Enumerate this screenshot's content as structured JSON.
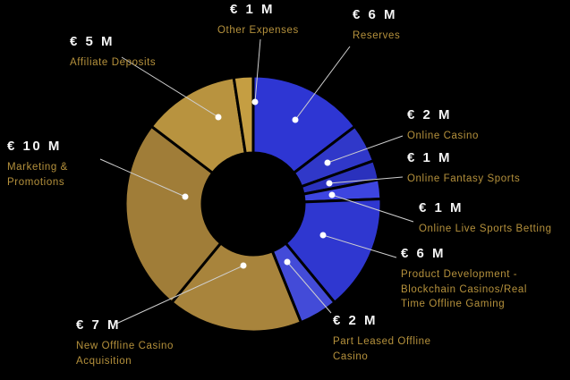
{
  "chart_data": {
    "type": "pie",
    "subtype": "donut",
    "title": "",
    "unit": "€ M",
    "total": 41,
    "legend": "none",
    "background": "#000000",
    "series": [
      {
        "name": "Reserves",
        "value": 6,
        "value_label": "€ 6 M",
        "color": "#2e36d3"
      },
      {
        "name": "Online Casino",
        "value": 2,
        "value_label": "€ 2 M",
        "color": "#3038c9"
      },
      {
        "name": "Online Fantasy Sports",
        "value": 1,
        "value_label": "€ 1 M",
        "color": "#2a31bd"
      },
      {
        "name": "Online Live Sports Betting",
        "value": 1,
        "value_label": "€ 1 M",
        "color": "#3d45e0"
      },
      {
        "name": "Product Development -\nBlockchain Casinos/Real\nTime Offline Gaming",
        "value": 6,
        "value_label": "€ 6 M",
        "color": "#2f37d0"
      },
      {
        "name": "Part Leased Offline\nCasino",
        "value": 2,
        "value_label": "€ 2 M",
        "color": "#434bd8"
      },
      {
        "name": "New Offline Casino\nAcquisition",
        "value": 7,
        "value_label": "€ 7 M",
        "color": "#a8843c"
      },
      {
        "name": "Marketing &\nPromotions",
        "value": 10,
        "value_label": "€ 10 M",
        "color": "#a07d38"
      },
      {
        "name": "Affiliate Deposits",
        "value": 5,
        "value_label": "€ 5 M",
        "color": "#b8933f"
      },
      {
        "name": "Other Expenses",
        "value": 1,
        "value_label": "€ 1 M",
        "color": "#c59e42"
      }
    ],
    "colors": {
      "value_text": "#f5f5f5",
      "category_text": "#b5913c",
      "leader_line": "#cfcfcf",
      "slice_gap": "#000000"
    }
  }
}
